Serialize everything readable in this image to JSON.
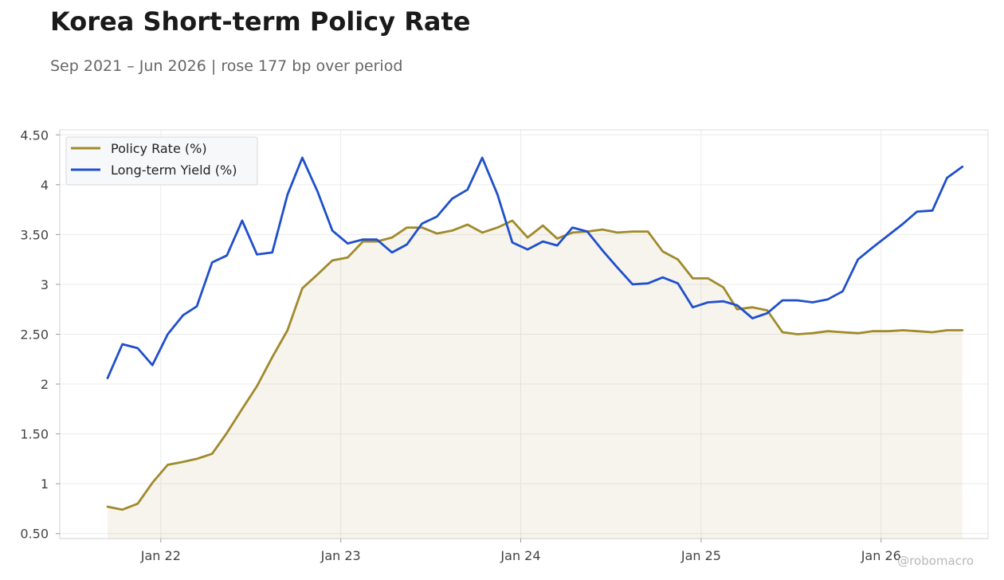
{
  "chart_data": {
    "type": "line",
    "title": "Korea Short-term Policy Rate",
    "subtitle": "Sep 2021 – Jun 2026 | rose 177 bp over period",
    "watermark": "@robomacro",
    "xlabel": "",
    "ylabel": "",
    "x_start": "2021-09",
    "x_end": "2026-06",
    "xlim": [
      "2021-06-10",
      "2026-08-06"
    ],
    "ylim": [
      0.45,
      4.55
    ],
    "yticks": [
      0.5,
      1,
      1.5,
      2,
      2.5,
      3,
      3.5,
      4,
      4.5
    ],
    "ytick_labels": [
      "0.50",
      "1",
      "1.50",
      "2",
      "2.50",
      "3",
      "3.50",
      "4",
      "4.50"
    ],
    "xticks": [
      "2022-01",
      "2023-01",
      "2024-01",
      "2025-01",
      "2026-01"
    ],
    "xtick_labels": [
      "Jan 22",
      "Jan 23",
      "Jan 24",
      "Jan 25",
      "Jan 26"
    ],
    "grid": true,
    "legend_position": "top-left",
    "dates": [
      "2021-09",
      "2021-10",
      "2021-11",
      "2021-12",
      "2022-01",
      "2022-02",
      "2022-03",
      "2022-04",
      "2022-05",
      "2022-06",
      "2022-07",
      "2022-08",
      "2022-09",
      "2022-10",
      "2022-11",
      "2022-12",
      "2023-01",
      "2023-02",
      "2023-03",
      "2023-04",
      "2023-05",
      "2023-06",
      "2023-07",
      "2023-08",
      "2023-09",
      "2023-10",
      "2023-11",
      "2023-12",
      "2024-01",
      "2024-02",
      "2024-03",
      "2024-04",
      "2024-05",
      "2024-06",
      "2024-07",
      "2024-08",
      "2024-09",
      "2024-10",
      "2024-11",
      "2024-12",
      "2025-01",
      "2025-02",
      "2025-03",
      "2025-04",
      "2025-05",
      "2025-06",
      "2025-07",
      "2025-08",
      "2025-09",
      "2025-10",
      "2025-11",
      "2025-12",
      "2026-01",
      "2026-02",
      "2026-03",
      "2026-04",
      "2026-05",
      "2026-06"
    ],
    "series": [
      {
        "name": "Policy Rate (%)",
        "color": "#a08a2c",
        "fill": true,
        "values": [
          0.77,
          0.74,
          0.8,
          1.01,
          1.19,
          1.22,
          1.25,
          1.3,
          1.51,
          1.75,
          1.98,
          2.27,
          2.54,
          2.96,
          3.1,
          3.24,
          3.27,
          3.43,
          3.43,
          3.47,
          3.57,
          3.57,
          3.51,
          3.54,
          3.6,
          3.52,
          3.57,
          3.64,
          3.47,
          3.59,
          3.46,
          3.52,
          3.53,
          3.55,
          3.52,
          3.53,
          3.53,
          3.33,
          3.25,
          3.06,
          3.06,
          2.97,
          2.75,
          2.77,
          2.74,
          2.52,
          2.5,
          2.51,
          2.53,
          2.52,
          2.51,
          2.53,
          2.53,
          2.54,
          2.53,
          2.52,
          2.54,
          2.54
        ]
      },
      {
        "name": "Long-term Yield (%)",
        "color": "#1f4fcc",
        "fill": false,
        "values": [
          2.06,
          2.4,
          2.36,
          2.19,
          2.5,
          2.69,
          2.78,
          3.22,
          3.29,
          3.64,
          3.3,
          3.32,
          3.9,
          4.27,
          3.93,
          3.54,
          3.41,
          3.45,
          3.45,
          3.32,
          3.4,
          3.61,
          3.68,
          3.86,
          3.95,
          4.27,
          3.9,
          3.42,
          3.35,
          3.43,
          3.39,
          3.57,
          3.53,
          3.34,
          3.17,
          3.0,
          3.01,
          3.07,
          3.01,
          2.77,
          2.82,
          2.83,
          2.79,
          2.66,
          2.71,
          2.84,
          2.84,
          2.82,
          2.85,
          2.93,
          3.25,
          3.37,
          3.49,
          3.61,
          3.73,
          3.74,
          4.07,
          4.18
        ]
      }
    ]
  }
}
